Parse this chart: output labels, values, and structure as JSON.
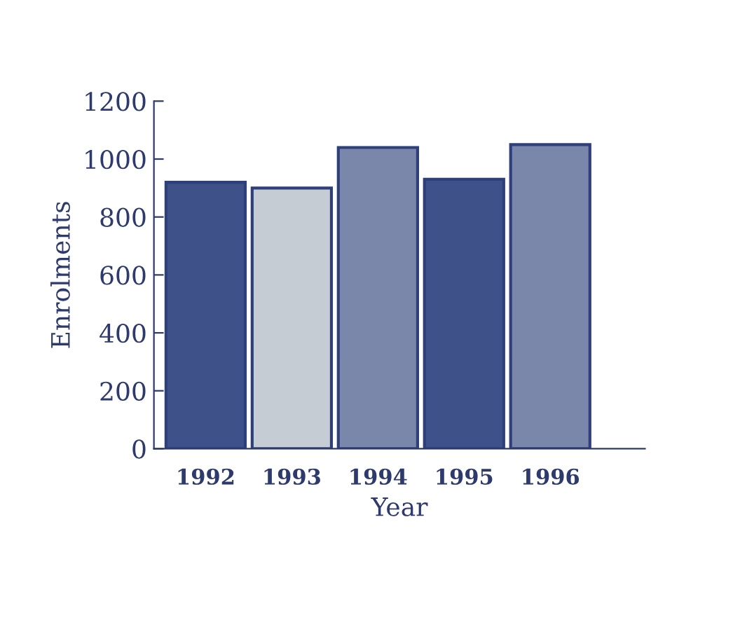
{
  "chart_data": {
    "type": "bar",
    "xlabel": "Year",
    "ylabel": "Enrolments",
    "categories": [
      "1992",
      "1993",
      "1994",
      "1995",
      "1996"
    ],
    "values": [
      920,
      900,
      1040,
      930,
      1050
    ],
    "colors": [
      "#3f5189",
      "#c6ccd3",
      "#7a87aa",
      "#3f5189",
      "#7a87aa"
    ],
    "ylim": [
      0,
      1200
    ],
    "yticks": [
      0,
      200,
      400,
      600,
      800,
      1000,
      1200
    ],
    "grid": false,
    "legend": false
  }
}
